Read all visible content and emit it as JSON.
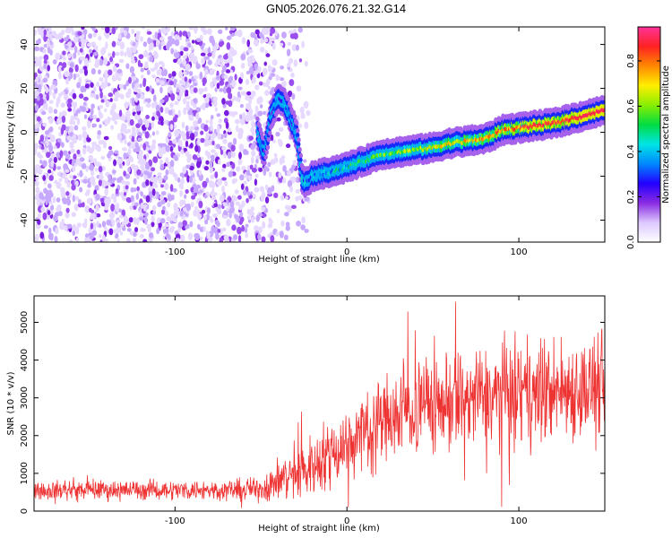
{
  "title": "GN05.2026.076.21.32.G14",
  "chart_data": [
    {
      "type": "heatmap",
      "title": "GN05.2026.076.21.32.G14",
      "xlabel": "Height of straight line (km)",
      "ylabel": "Frequency (Hz)",
      "xlim": [
        -182,
        150
      ],
      "ylim": [
        -50,
        48
      ],
      "x_ticks": [
        -100,
        0,
        100
      ],
      "x_tick_labels": [
        "-100",
        "0",
        "100"
      ],
      "y_ticks": [
        -40,
        -20,
        0,
        20,
        40
      ],
      "y_tick_labels": [
        "-40",
        "-20",
        "0",
        "20",
        "40"
      ],
      "ridge": {
        "x": [
          -52,
          -48,
          -44,
          -40,
          -36,
          -32,
          -29,
          -26,
          -24,
          -20,
          -10,
          0,
          10,
          20,
          30,
          40,
          50,
          60,
          70,
          80,
          86,
          90,
          100,
          110,
          120,
          130,
          140,
          150
        ],
        "y": [
          0,
          -10,
          8,
          15,
          13,
          5,
          -2,
          -22,
          -23,
          -20,
          -18,
          -16,
          -13,
          -10,
          -9,
          -8,
          -7,
          -5,
          -4,
          -3,
          -1,
          1,
          2,
          3,
          4,
          6,
          8,
          10
        ]
      },
      "noise_region_x": [
        -182,
        -22
      ]
    },
    {
      "type": "line",
      "xlabel": "Height of straight line (km)",
      "ylabel": "SNR (10 * v/v)",
      "xlim": [
        -182,
        150
      ],
      "ylim": [
        0,
        5700
      ],
      "x_ticks": [
        -100,
        0,
        100
      ],
      "x_tick_labels": [
        "-100",
        "0",
        "100"
      ],
      "y_ticks": [
        0,
        1000,
        2000,
        3000,
        4000,
        5000
      ],
      "y_tick_labels": [
        "0",
        "1000",
        "2000",
        "3000",
        "4000",
        "5000"
      ],
      "series": [
        {
          "name": "SNR",
          "color": "#ee3333",
          "envelope": {
            "x": [
              -182,
              -150,
              -100,
              -60,
              -50,
              -40,
              -30,
              -20,
              -10,
              0,
              10,
              20,
              30,
              40,
              60,
              80,
              100,
              120,
              150
            ],
            "mean": [
              560,
              560,
              560,
              560,
              600,
              800,
              1000,
              1200,
              1550,
              1800,
              2100,
              2400,
              2600,
              2800,
              2900,
              3000,
              3100,
              3200,
              3300
            ],
            "spread": [
              280,
              280,
              280,
              300,
              400,
              600,
              800,
              900,
              1000,
              1100,
              1200,
              1300,
              1400,
              1450,
              1500,
              1500,
              1500,
              1500,
              1500
            ]
          }
        }
      ]
    }
  ],
  "colorbar": {
    "label": "Normalized spectral amplitude",
    "ticks": [
      0.0,
      0.2,
      0.4,
      0.6,
      0.8
    ],
    "tick_labels": [
      "0.0",
      "0.2",
      "0.4",
      "0.6",
      "0.8"
    ],
    "range": [
      0,
      0.95
    ],
    "colors": [
      "#ffffff",
      "#dcc8ff",
      "#8a2be2",
      "#2200ff",
      "#0088ff",
      "#00e5e5",
      "#00dd44",
      "#88ee00",
      "#ffee00",
      "#ff8800",
      "#ff2222",
      "#ff3399"
    ]
  }
}
